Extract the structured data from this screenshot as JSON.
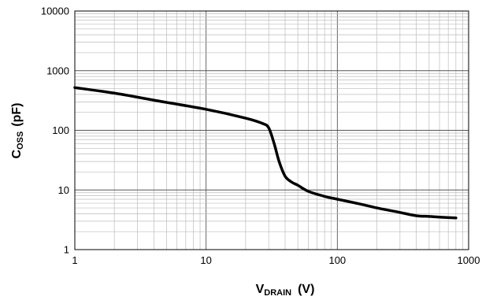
{
  "chart_data": {
    "type": "line",
    "xscale": "log",
    "yscale": "log",
    "xlim": [
      1,
      1000
    ],
    "ylim": [
      1,
      10000
    ],
    "grid": true,
    "legend": "none",
    "xlabel": {
      "main": "V",
      "sub": "DRAIN",
      "unit": "(V)"
    },
    "ylabel": {
      "main": "C",
      "sub": "OSS",
      "unit": "(pF)"
    },
    "x_ticks": [
      {
        "value": 1,
        "label": "1"
      },
      {
        "value": 10,
        "label": "10"
      },
      {
        "value": 100,
        "label": "100"
      },
      {
        "value": 1000,
        "label": "1000"
      }
    ],
    "y_ticks": [
      {
        "value": 1,
        "label": "1"
      },
      {
        "value": 10,
        "label": "10"
      },
      {
        "value": 100,
        "label": "100"
      },
      {
        "value": 1000,
        "label": "1000"
      },
      {
        "value": 10000,
        "label": "10000"
      }
    ],
    "line_color": "#000000",
    "series": [
      {
        "x": [
          1,
          2,
          4,
          10,
          20,
          27,
          30,
          33,
          36,
          40,
          45,
          50,
          60,
          80,
          100,
          150,
          200,
          300,
          400,
          500,
          600,
          800
        ],
        "y": [
          520,
          420,
          320,
          225,
          160,
          130,
          110,
          60,
          30,
          17,
          13.5,
          12,
          9.5,
          7.8,
          7,
          5.8,
          5,
          4.2,
          3.7,
          3.6,
          3.5,
          3.4
        ]
      }
    ]
  }
}
